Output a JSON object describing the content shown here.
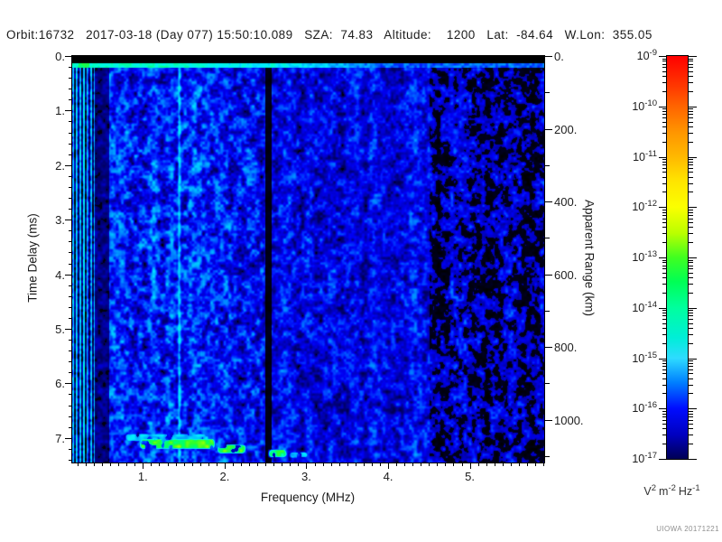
{
  "header": {
    "text": "Orbit:16732   2017-03-18 (Day 077) 15:50:10.089   SZA:  74.83   Altitude:    1200   Lat:  -84.64   W.Lon:  355.05"
  },
  "watermark": "UIOWA 20171221",
  "chart_data": {
    "type": "heatmap",
    "description": "Radar sounder ionogram spectrogram: received spectral density vs sounding frequency (x) and echo time delay (y). Blue speckle noise background, bright green surface-echo line near top, green ionospheric echo trace near 7.1-7.4 ms between about 0.9 and 3.0 MHz, narrow black dropout band near 2.5 MHz, striped interference below 0.41 MHz, noise fading to black patches above 4.5 MHz.",
    "x_axis": {
      "label": "Frequency (MHz)",
      "min": 0.135,
      "max": 5.91,
      "major_ticks": [
        1,
        2,
        3,
        4,
        5
      ],
      "major_tick_labels": [
        "1.",
        "2.",
        "3.",
        "4.",
        "5."
      ],
      "minor_tick_step": 0.1
    },
    "y_axis_left": {
      "label": "Time Delay (ms)",
      "min": 0,
      "max": 7.45,
      "direction": "down",
      "major_ticks": [
        0,
        1,
        2,
        3,
        4,
        5,
        6,
        7
      ],
      "major_tick_labels": [
        "0.",
        "1.",
        "2.",
        "3.",
        "4.",
        "5.",
        "6.",
        "7."
      ],
      "minor_tick_step": 0.2
    },
    "y_axis_right": {
      "label": "Apparent Range (km)",
      "min": 0,
      "max": 1117,
      "major_ticks": [
        0,
        200,
        400,
        600,
        800,
        1000
      ],
      "major_tick_labels": [
        "0.",
        "200.",
        "400.",
        "600.",
        "800.",
        "1000."
      ],
      "minor_tick_step": 100
    },
    "colorbar": {
      "scale": "log",
      "base": "10",
      "exponents": [
        "-9",
        "-10",
        "-11",
        "-12",
        "-13",
        "-14",
        "-15",
        "-16",
        "-17"
      ],
      "value_range": [
        "1e-17",
        "1e-9"
      ],
      "unit_parts": [
        {
          "base": "V",
          "sup": "2"
        },
        {
          "base": "m",
          "sup": "-2"
        },
        {
          "base": "Hz",
          "sup": "-1"
        }
      ],
      "gradient": [
        {
          "pos": 0,
          "color": "#ff0000"
        },
        {
          "pos": 8,
          "color": "#ff3c00"
        },
        {
          "pos": 12.5,
          "color": "#ff6400"
        },
        {
          "pos": 19,
          "color": "#ff9600"
        },
        {
          "pos": 25,
          "color": "#ffb800"
        },
        {
          "pos": 31,
          "color": "#ffe400"
        },
        {
          "pos": 37.5,
          "color": "#fbff00"
        },
        {
          "pos": 44,
          "color": "#baff00"
        },
        {
          "pos": 50,
          "color": "#40ff20"
        },
        {
          "pos": 56,
          "color": "#00ff55"
        },
        {
          "pos": 62.5,
          "color": "#00ff9e"
        },
        {
          "pos": 70,
          "color": "#00eed8"
        },
        {
          "pos": 75,
          "color": "#2edbff"
        },
        {
          "pos": 81,
          "color": "#0080ff"
        },
        {
          "pos": 87.5,
          "color": "#000cff"
        },
        {
          "pos": 94,
          "color": "#0000c0"
        },
        {
          "pos": 100,
          "color": "#000054"
        }
      ]
    },
    "colormap_stops": [
      [
        0.0,
        "#000000"
      ],
      [
        0.035,
        "#000040"
      ],
      [
        0.075,
        "#000080"
      ],
      [
        0.105,
        "#0000bb"
      ],
      [
        0.145,
        "#0000f5"
      ],
      [
        0.185,
        "#0040ff"
      ],
      [
        0.225,
        "#0086ff"
      ],
      [
        0.27,
        "#00c3ff"
      ],
      [
        0.315,
        "#00eeff"
      ],
      [
        0.375,
        "#00ffc8"
      ],
      [
        0.435,
        "#00ff70"
      ],
      [
        0.5,
        "#2cff2c"
      ],
      [
        0.58,
        "#9cff00"
      ],
      [
        0.7,
        "#ffd800"
      ],
      [
        0.85,
        "#ff5c00"
      ],
      [
        1.0,
        "#ff0000"
      ]
    ],
    "features": {
      "top_black_strip_ms": [
        0,
        0.13
      ],
      "surface_echo_line_ms": 0.18,
      "striped_interference_mhz": [
        0.135,
        0.41
      ],
      "dark_band_mhz": [
        0.41,
        0.58
      ],
      "bright_interference_line_mhz": 1.44,
      "black_dropout_band_mhz": [
        2.49,
        2.57
      ],
      "noise_fades_above_mhz": 4.5,
      "echo_trace_segments": [
        {
          "f": [
            0.76,
            1.82
          ],
          "ms": [
            6.9,
            7.07
          ],
          "t": 0.27
        },
        {
          "f": [
            0.94,
            1.89
          ],
          "ms": [
            6.99,
            7.21
          ],
          "t": 0.47
        },
        {
          "f": [
            1.89,
            2.27
          ],
          "ms": [
            7.1,
            7.29
          ],
          "t": 0.45
        },
        {
          "f": [
            2.52,
            2.77
          ],
          "ms": [
            7.19,
            7.36
          ],
          "t": 0.43
        },
        {
          "f": [
            2.77,
            3.03
          ],
          "ms": [
            7.24,
            7.37
          ],
          "t": 0.27
        }
      ]
    }
  }
}
